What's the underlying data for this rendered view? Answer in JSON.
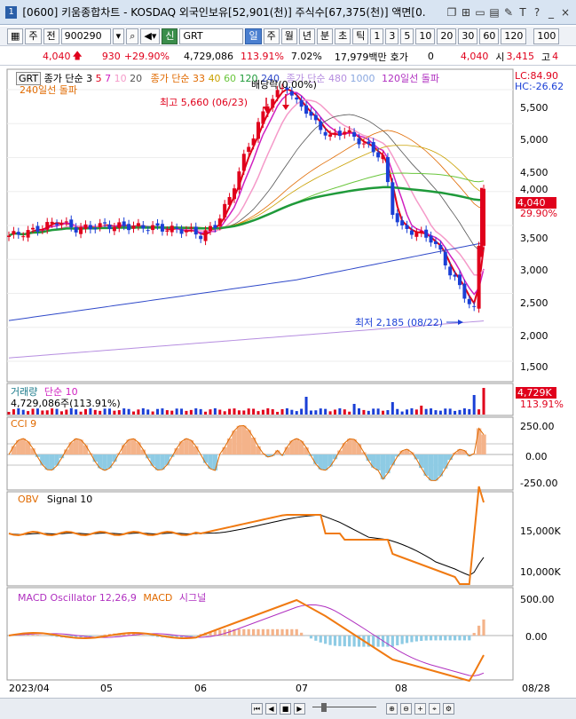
{
  "window": {
    "number": "1",
    "title": "[0600] 키움종합차트 - KOSDAQ 외국인보유[52,901(천)] 주식수[67,375(천)] 액면[0.",
    "icons": [
      "restore-icon",
      "tile-icon",
      "copy-icon",
      "clip-icon",
      "tool-icon",
      "text-icon",
      "help-icon",
      "minimize-icon",
      "close-icon"
    ]
  },
  "toolbar": {
    "type_label": "주",
    "prev_label": "전",
    "code": "900290",
    "market_badge": "신",
    "stock_name": "GRT",
    "period_tabs": [
      "일",
      "주",
      "월",
      "년",
      "분",
      "초",
      "틱"
    ],
    "active_period": "일",
    "interval_buttons": [
      "1",
      "3",
      "5",
      "10",
      "20",
      "30",
      "60",
      "120"
    ],
    "count_value": "100"
  },
  "infobar": {
    "price": "4,040",
    "change": "930",
    "change_pct": "+29.90%",
    "volume": "4,729,086",
    "vol_ratio": "113.91%",
    "turnover": "7.02%",
    "amount": "17,979백만",
    "quote_label": "호가",
    "quote_value": "0",
    "price2": "4,040",
    "open_label": "시",
    "open_value": "3,415",
    "high_label": "고",
    "high_value": "4"
  },
  "price_panel": {
    "symbol": "GRT",
    "ma_label1": "종가 단순 3",
    "ma_periods1": [
      "5",
      "7",
      "10",
      "20"
    ],
    "ma_label2": "종가 단순 33",
    "ma_periods2": [
      "40",
      "60",
      "120",
      "240"
    ],
    "ma_label3": "종가 단순 480",
    "ma_periods3": [
      "1000"
    ],
    "breakout_label": "120일선 돌파",
    "breakout_label2": "240일선 돌파",
    "lc_label": "LC:84.90",
    "hc_label": "HC:-26.62",
    "dividend_label": "배당락(0.00%)",
    "high_marker": "최고 5,660 (06/23)",
    "low_marker": "최저 2,185 (08/22)",
    "current_price_tag": "4,040",
    "current_pct_tag": "29.90%",
    "y_ticks": [
      "5,500",
      "5,000",
      "4,500",
      "4,000",
      "3,500",
      "3,000",
      "2,500",
      "2,000",
      "1,500"
    ]
  },
  "volume_panel": {
    "title": "거래량",
    "ma_label": "단순 10",
    "value_label": "4,729,086주(113.91%)",
    "tag_value": "4,729K",
    "tag_pct": "113.91%"
  },
  "cci_panel": {
    "title": "CCI 9",
    "y_ticks": [
      "250.00",
      "0.00",
      "-250.00"
    ]
  },
  "obv_panel": {
    "title": "OBV",
    "signal_label": "Signal 10",
    "y_ticks": [
      "15,000K",
      "10,000K"
    ]
  },
  "macd_panel": {
    "title": "MACD Oscillator 12,26,9",
    "macd_label": "MACD",
    "signal_label": "시그널",
    "y_ticks": [
      "500.00",
      "0.00"
    ]
  },
  "x_axis": {
    "labels": [
      "2023/04",
      "05",
      "06",
      "07",
      "08"
    ],
    "right_label": "08/28"
  },
  "colors": {
    "up": "#e0001b",
    "down": "#1a3fd6",
    "ma_green": "#1f9a3a",
    "ma_blue": "#2f49c9",
    "ma_violet": "#b68ee0",
    "obv_orange": "#f07a12",
    "cci_fill_up": "#f4b38a",
    "cci_fill_down": "#8ecbe4"
  },
  "chart_data": {
    "type": "candlestick",
    "price_range": [
      1200,
      5800
    ],
    "candles_sample": [
      {
        "date": "04/03",
        "close": 3350
      },
      {
        "date": "04/20",
        "close": 3550
      },
      {
        "date": "05/02",
        "close": 3420
      },
      {
        "date": "05/25",
        "close": 3480
      },
      {
        "date": "06/01",
        "close": 3500
      },
      {
        "date": "06/15",
        "close": 4700
      },
      {
        "date": "06/23",
        "high": 5660,
        "close": 5500
      },
      {
        "date": "07/10",
        "close": 4800
      },
      {
        "date": "07/25",
        "close": 4500
      },
      {
        "date": "08/05",
        "close": 3300
      },
      {
        "date": "08/22",
        "low": 2185,
        "close": 2300
      },
      {
        "date": "08/28",
        "close": 4040
      }
    ],
    "last_volume": 4729086,
    "obv_range_k": [
      9000,
      19000
    ],
    "macd_range": [
      -600,
      700
    ]
  },
  "statusbar": {
    "nav_buttons": [
      "first-icon",
      "prev-icon",
      "stop-icon",
      "next-icon"
    ],
    "tool_buttons": [
      "zoom-in-icon",
      "zoom-out-icon",
      "plus-icon",
      "crosshair-icon",
      "settings-icon"
    ]
  }
}
